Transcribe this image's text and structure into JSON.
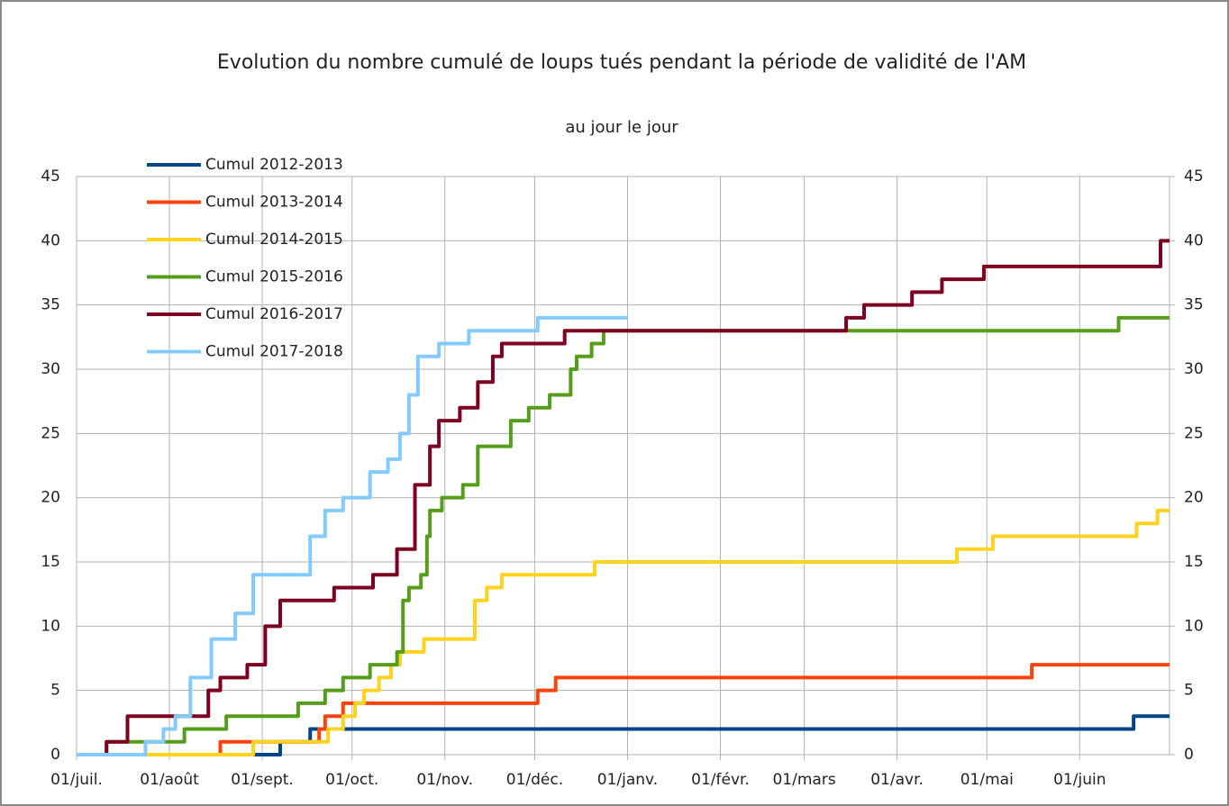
{
  "chart_data": {
    "type": "line",
    "step": "post",
    "title": "Evolution du nombre cumulé de loups tués pendant la période de validité de l'AM",
    "subtitle": "au jour le jour",
    "xlim": [
      0,
      365
    ],
    "xticks": [
      {
        "value": 0,
        "label": "01/juil."
      },
      {
        "value": 31,
        "label": "01/août"
      },
      {
        "value": 62,
        "label": "01/sept."
      },
      {
        "value": 92,
        "label": "01/oct."
      },
      {
        "value": 123,
        "label": "01/nov."
      },
      {
        "value": 153,
        "label": "01/déc."
      },
      {
        "value": 184,
        "label": "01/janv."
      },
      {
        "value": 215,
        "label": "01/févr."
      },
      {
        "value": 243,
        "label": "01/mars"
      },
      {
        "value": 274,
        "label": "01/avr."
      },
      {
        "value": 304,
        "label": "01/mai"
      },
      {
        "value": 335,
        "label": "01/juin"
      }
    ],
    "ylim": [
      0,
      45
    ],
    "yticks": [
      0,
      5,
      10,
      15,
      20,
      25,
      30,
      35,
      40,
      45
    ],
    "y2lim": [
      0,
      45
    ],
    "y2ticks": [
      0,
      5,
      10,
      15,
      20,
      25,
      30,
      35,
      40,
      45
    ],
    "grid": true,
    "legend": "top-left",
    "series": [
      {
        "name": "Cumul 2012-2013",
        "color": "#004586",
        "x": [
          0,
          68,
          78,
          353,
          365
        ],
        "values": [
          0,
          1,
          2,
          3,
          3
        ]
      },
      {
        "name": "Cumul 2013-2014",
        "color": "#ff420e",
        "x": [
          0,
          48,
          81,
          83,
          89,
          154,
          160,
          319,
          365
        ],
        "values": [
          0,
          1,
          2,
          3,
          4,
          5,
          6,
          7,
          7
        ]
      },
      {
        "name": "Cumul 2014-2015",
        "color": "#ffd320",
        "x": [
          0,
          59,
          84,
          89,
          93,
          96,
          101,
          105,
          108,
          116,
          133,
          137,
          142,
          173,
          294,
          306,
          354,
          361,
          365
        ],
        "values": [
          0,
          1,
          2,
          3,
          4,
          5,
          6,
          7,
          8,
          9,
          12,
          13,
          14,
          15,
          16,
          17,
          18,
          19,
          19
        ]
      },
      {
        "name": "Cumul 2015-2016",
        "color": "#579d1c",
        "x": [
          0,
          10,
          36,
          50,
          74,
          83,
          89,
          98,
          107,
          109,
          111,
          115,
          117,
          118,
          122,
          129,
          134,
          145,
          151,
          158,
          165,
          167,
          172,
          176,
          348,
          365
        ],
        "values": [
          0,
          1,
          2,
          3,
          4,
          5,
          6,
          7,
          8,
          12,
          13,
          14,
          17,
          19,
          20,
          21,
          24,
          26,
          27,
          28,
          30,
          31,
          32,
          33,
          34,
          34
        ]
      },
      {
        "name": "Cumul 2016-2017",
        "color": "#7e0021",
        "x": [
          0,
          10,
          17,
          44,
          48,
          57,
          63,
          68,
          86,
          99,
          107,
          113,
          118,
          121,
          128,
          134,
          139,
          142,
          163,
          257,
          263,
          279,
          289,
          303,
          362,
          365
        ],
        "values": [
          0,
          1,
          3,
          5,
          6,
          7,
          10,
          12,
          13,
          14,
          16,
          21,
          24,
          26,
          27,
          29,
          31,
          32,
          33,
          34,
          35,
          36,
          37,
          38,
          40,
          40
        ]
      },
      {
        "name": "Cumul 2017-2018",
        "color": "#83caff",
        "x": [
          0,
          23,
          29,
          33,
          38,
          45,
          53,
          59,
          78,
          83,
          89,
          98,
          104,
          108,
          111,
          114,
          121,
          131,
          154,
          184
        ],
        "values": [
          0,
          1,
          2,
          3,
          6,
          9,
          11,
          14,
          17,
          19,
          20,
          22,
          23,
          25,
          28,
          31,
          32,
          33,
          34,
          34
        ]
      }
    ]
  }
}
